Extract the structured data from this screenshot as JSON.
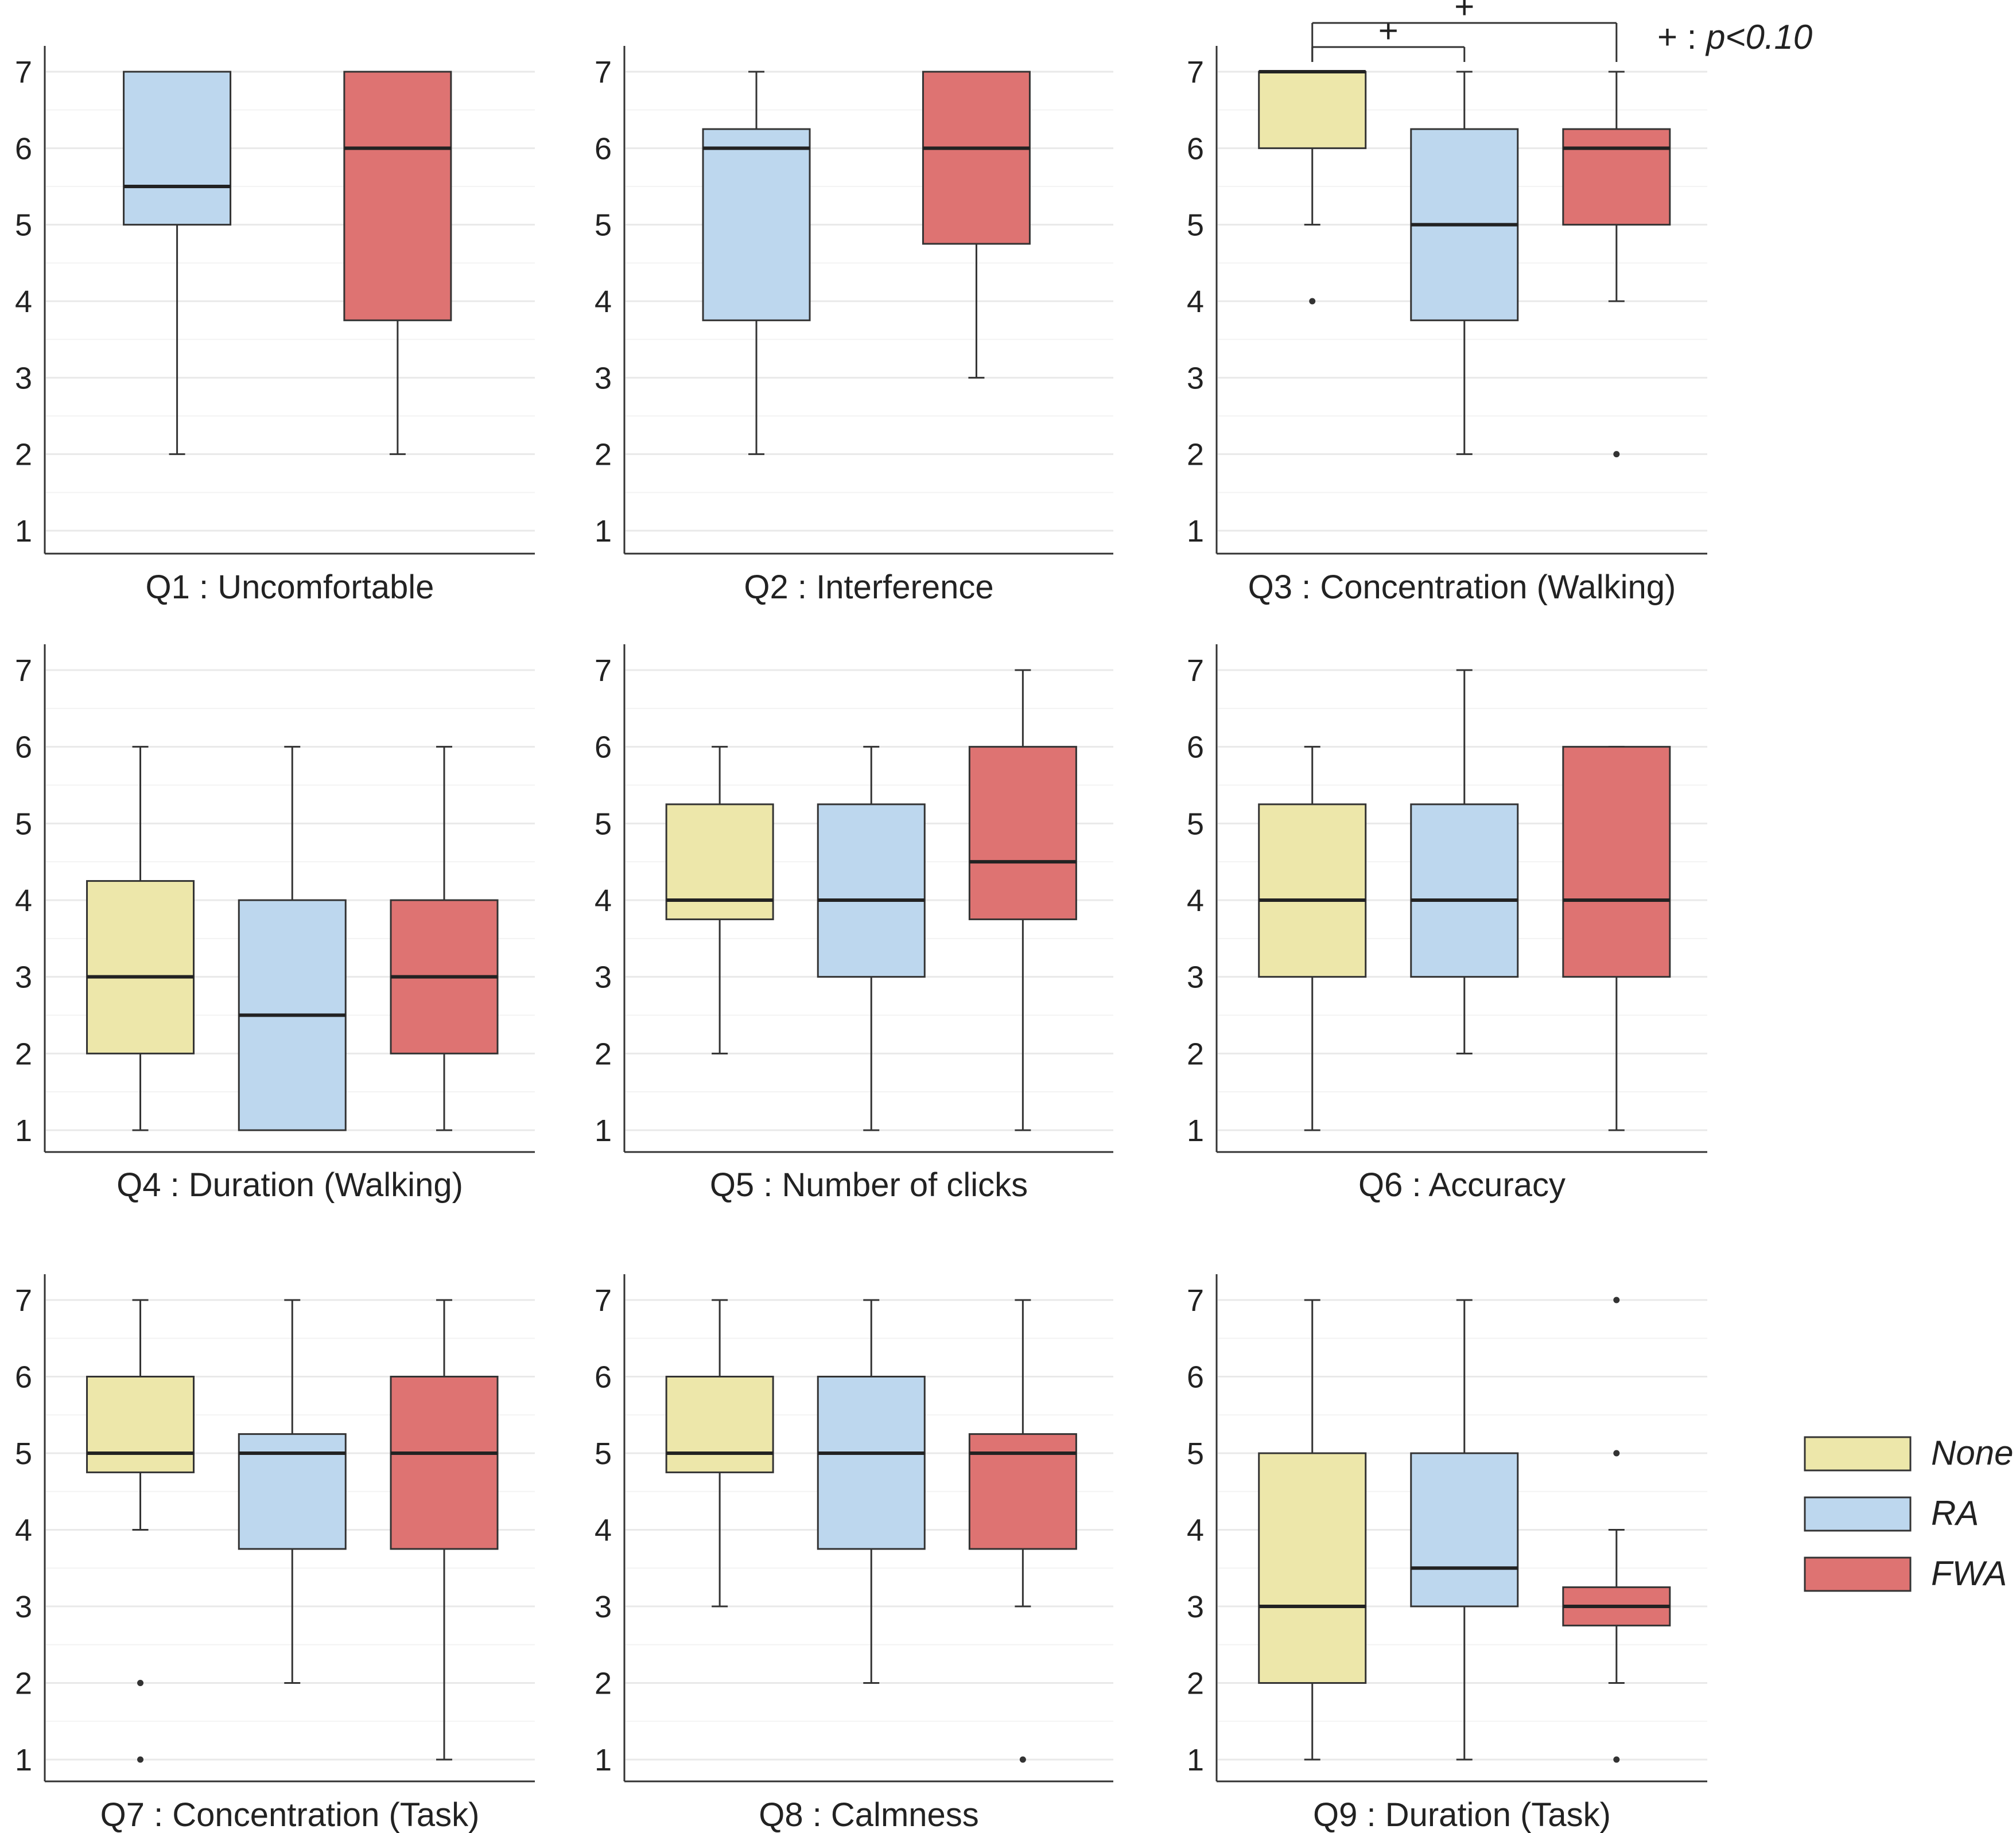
{
  "colors": {
    "None": "#ede7aa",
    "RA": "#bdd7ee",
    "FWA": "#de7372",
    "box_edge": "#333333",
    "median": "#222222",
    "grid": "#e9e9e9",
    "axis": "#333333"
  },
  "legend": {
    "position": "right",
    "items": [
      "None",
      "RA",
      "FWA"
    ]
  },
  "annotation": {
    "symbol": "+",
    "separator": " : ",
    "text": "p<0.10"
  },
  "chart_data": [
    {
      "type": "box",
      "title": "Q1 : Uncomfortable",
      "ylim": [
        1,
        7
      ],
      "yticks": [
        1,
        2,
        3,
        4,
        5,
        6,
        7
      ],
      "grid": true,
      "groups": [
        {
          "name": "RA",
          "min": 2,
          "q1": 5,
          "median": 5.5,
          "q3": 7,
          "max": 7,
          "outliers": []
        },
        {
          "name": "FWA",
          "min": 2,
          "q1": 3.75,
          "median": 6,
          "q3": 7,
          "max": 7,
          "outliers": []
        }
      ],
      "significance": []
    },
    {
      "type": "box",
      "title": "Q2 : Interference",
      "ylim": [
        1,
        7
      ],
      "yticks": [
        1,
        2,
        3,
        4,
        5,
        6,
        7
      ],
      "grid": true,
      "groups": [
        {
          "name": "RA",
          "min": 2,
          "q1": 3.75,
          "median": 6,
          "q3": 6.25,
          "max": 7,
          "outliers": []
        },
        {
          "name": "FWA",
          "min": 3,
          "q1": 4.75,
          "median": 6,
          "q3": 7,
          "max": 7,
          "outliers": []
        }
      ],
      "significance": []
    },
    {
      "type": "box",
      "title": "Q3 : Concentration (Walking)",
      "ylim": [
        1,
        7
      ],
      "yticks": [
        1,
        2,
        3,
        4,
        5,
        6,
        7
      ],
      "grid": true,
      "groups": [
        {
          "name": "None",
          "min": 5,
          "q1": 6,
          "median": 7,
          "q3": 7,
          "max": 7,
          "outliers": [
            4
          ]
        },
        {
          "name": "RA",
          "min": 2,
          "q1": 3.75,
          "median": 5,
          "q3": 6.25,
          "max": 7,
          "outliers": []
        },
        {
          "name": "FWA",
          "min": 4,
          "q1": 5,
          "median": 6,
          "q3": 6.25,
          "max": 7,
          "outliers": [
            2
          ]
        }
      ],
      "significance": [
        {
          "from": 0,
          "to": 1,
          "label": "+"
        },
        {
          "from": 0,
          "to": 2,
          "label": "+"
        }
      ]
    },
    {
      "type": "box",
      "title": "Q4 : Duration (Walking)",
      "ylim": [
        1,
        7
      ],
      "yticks": [
        1,
        2,
        3,
        4,
        5,
        6,
        7
      ],
      "grid": true,
      "groups": [
        {
          "name": "None",
          "min": 1,
          "q1": 2,
          "median": 3,
          "q3": 4.25,
          "max": 6,
          "outliers": []
        },
        {
          "name": "RA",
          "min": 1,
          "q1": 1,
          "median": 2.5,
          "q3": 4,
          "max": 6,
          "outliers": []
        },
        {
          "name": "FWA",
          "min": 1,
          "q1": 2,
          "median": 3,
          "q3": 4,
          "max": 6,
          "outliers": []
        }
      ],
      "significance": []
    },
    {
      "type": "box",
      "title": "Q5 : Number of clicks",
      "ylim": [
        1,
        7
      ],
      "yticks": [
        1,
        2,
        3,
        4,
        5,
        6,
        7
      ],
      "grid": true,
      "groups": [
        {
          "name": "None",
          "min": 2,
          "q1": 3.75,
          "median": 4,
          "q3": 5.25,
          "max": 6,
          "outliers": []
        },
        {
          "name": "RA",
          "min": 1,
          "q1": 3,
          "median": 4,
          "q3": 5.25,
          "max": 6,
          "outliers": []
        },
        {
          "name": "FWA",
          "min": 1,
          "q1": 3.75,
          "median": 4.5,
          "q3": 6,
          "max": 7,
          "outliers": []
        }
      ],
      "significance": []
    },
    {
      "type": "box",
      "title": "Q6 : Accuracy",
      "ylim": [
        1,
        7
      ],
      "yticks": [
        1,
        2,
        3,
        4,
        5,
        6,
        7
      ],
      "grid": true,
      "groups": [
        {
          "name": "None",
          "min": 1,
          "q1": 3,
          "median": 4,
          "q3": 5.25,
          "max": 6,
          "outliers": []
        },
        {
          "name": "RA",
          "min": 2,
          "q1": 3,
          "median": 4,
          "q3": 5.25,
          "max": 7,
          "outliers": []
        },
        {
          "name": "FWA",
          "min": 1,
          "q1": 3,
          "median": 4,
          "q3": 6,
          "max": 6,
          "outliers": []
        }
      ],
      "significance": []
    },
    {
      "type": "box",
      "title": "Q7 : Concentration (Task)",
      "ylim": [
        1,
        7
      ],
      "yticks": [
        1,
        2,
        3,
        4,
        5,
        6,
        7
      ],
      "grid": true,
      "groups": [
        {
          "name": "None",
          "min": 4,
          "q1": 4.75,
          "median": 5,
          "q3": 6,
          "max": 7,
          "outliers": [
            2,
            1
          ]
        },
        {
          "name": "RA",
          "min": 2,
          "q1": 3.75,
          "median": 5,
          "q3": 5.25,
          "max": 7,
          "outliers": []
        },
        {
          "name": "FWA",
          "min": 1,
          "q1": 3.75,
          "median": 5,
          "q3": 6,
          "max": 7,
          "outliers": []
        }
      ],
      "significance": []
    },
    {
      "type": "box",
      "title": "Q8 : Calmness",
      "ylim": [
        1,
        7
      ],
      "yticks": [
        1,
        2,
        3,
        4,
        5,
        6,
        7
      ],
      "grid": true,
      "groups": [
        {
          "name": "None",
          "min": 3,
          "q1": 4.75,
          "median": 5,
          "q3": 6,
          "max": 7,
          "outliers": []
        },
        {
          "name": "RA",
          "min": 2,
          "q1": 3.75,
          "median": 5,
          "q3": 6,
          "max": 7,
          "outliers": []
        },
        {
          "name": "FWA",
          "min": 3,
          "q1": 3.75,
          "median": 5,
          "q3": 5.25,
          "max": 7,
          "outliers": [
            1
          ]
        }
      ],
      "significance": []
    },
    {
      "type": "box",
      "title": "Q9 : Duration (Task)",
      "ylim": [
        1,
        7
      ],
      "yticks": [
        1,
        2,
        3,
        4,
        5,
        6,
        7
      ],
      "grid": true,
      "groups": [
        {
          "name": "None",
          "min": 1,
          "q1": 2,
          "median": 3,
          "q3": 5,
          "max": 7,
          "outliers": []
        },
        {
          "name": "RA",
          "min": 1,
          "q1": 3,
          "median": 3.5,
          "q3": 5,
          "max": 7,
          "outliers": []
        },
        {
          "name": "FWA",
          "min": 2,
          "q1": 2.75,
          "median": 3,
          "q3": 3.25,
          "max": 4,
          "outliers": [
            7,
            5,
            1
          ]
        }
      ],
      "significance": []
    }
  ]
}
